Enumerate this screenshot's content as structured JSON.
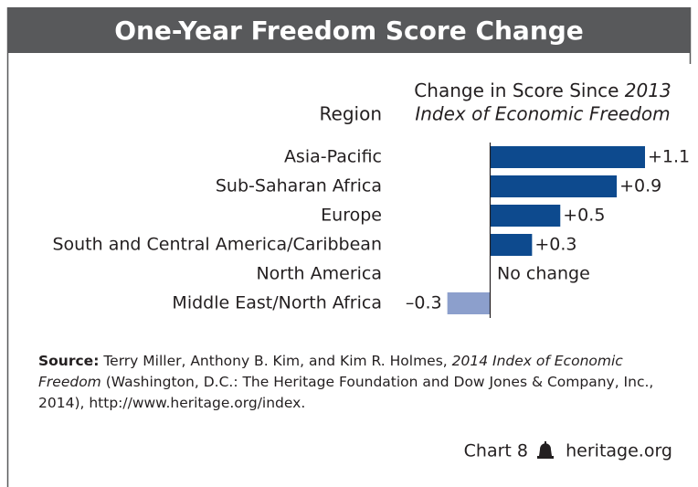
{
  "chart_data": {
    "type": "barh",
    "title": "One-Year Freedom Score Change",
    "category_header": "Region",
    "value_header": {
      "text": "Change in Score Since",
      "year": "2013",
      "publication": "Index of Economic Freedom"
    },
    "categories": [
      "Asia-Pacific",
      "Sub-Saharan Africa",
      "Europe",
      "South and Central America/Caribbean",
      "North America",
      "Middle East/North Africa"
    ],
    "values": [
      1.1,
      0.9,
      0.5,
      0.3,
      0,
      -0.3
    ],
    "value_labels": [
      "+1.1",
      "+0.9",
      "+0.5",
      "+0.3",
      "No change",
      "–0.3"
    ],
    "color": "#0d4a8e",
    "negative_color": "#8c9fcc",
    "source": {
      "label": "Source:",
      "authors": "Terry Miller, Anthony B. Kim, and Kim R. Holmes,",
      "publication": "2014 Index of Economic Freedom",
      "details": "(Washington, D.C.: The Heritage Foundation and Dow Jones & Company, Inc., 2014), http://www.heritage.org/index."
    },
    "chart_label": "Chart 8",
    "site": "heritage.org"
  }
}
